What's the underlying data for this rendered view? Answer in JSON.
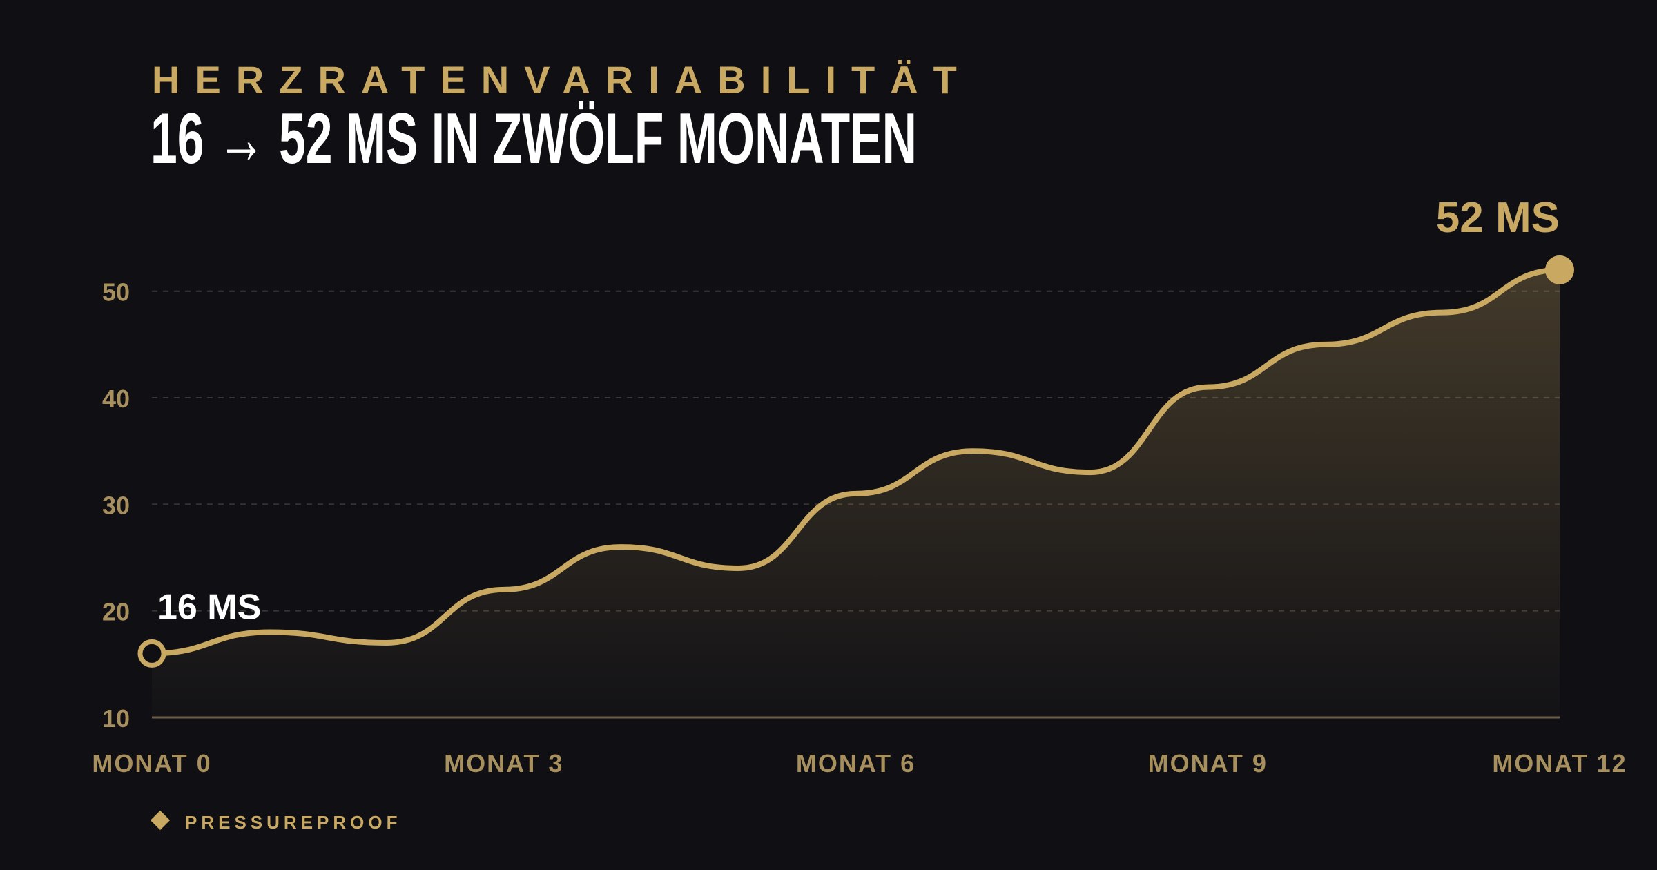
{
  "chart_data": {
    "type": "line",
    "subtitle": "HERZRATENVARIABILITÄT",
    "title": "16 → 52 MS IN ZWÖLF MONATEN",
    "x": [
      0,
      1,
      2,
      3,
      4,
      5,
      6,
      7,
      8,
      9,
      10,
      11,
      12
    ],
    "series": [
      {
        "name": "PRESSUREPROOF",
        "color": "#c9a862",
        "values": [
          16,
          18,
          17,
          22,
          26,
          24,
          31,
          35,
          33,
          41,
          45,
          48,
          52
        ]
      }
    ],
    "annotations": [
      {
        "text": "16 MS",
        "x": 0,
        "y": 16
      },
      {
        "text": "52 MS",
        "x": 12,
        "y": 52
      }
    ],
    "xlim": [
      0,
      12
    ],
    "xticks": [
      {
        "value": 0,
        "label": "MONAT 0"
      },
      {
        "value": 3,
        "label": "MONAT 3"
      },
      {
        "value": 6,
        "label": "MONAT 6"
      },
      {
        "value": 9,
        "label": "MONAT 9"
      },
      {
        "value": 12,
        "label": "MONAT 12"
      }
    ],
    "ylim": [
      10,
      54
    ],
    "yticks": [
      10,
      20,
      30,
      40,
      50
    ],
    "grid": true
  }
}
